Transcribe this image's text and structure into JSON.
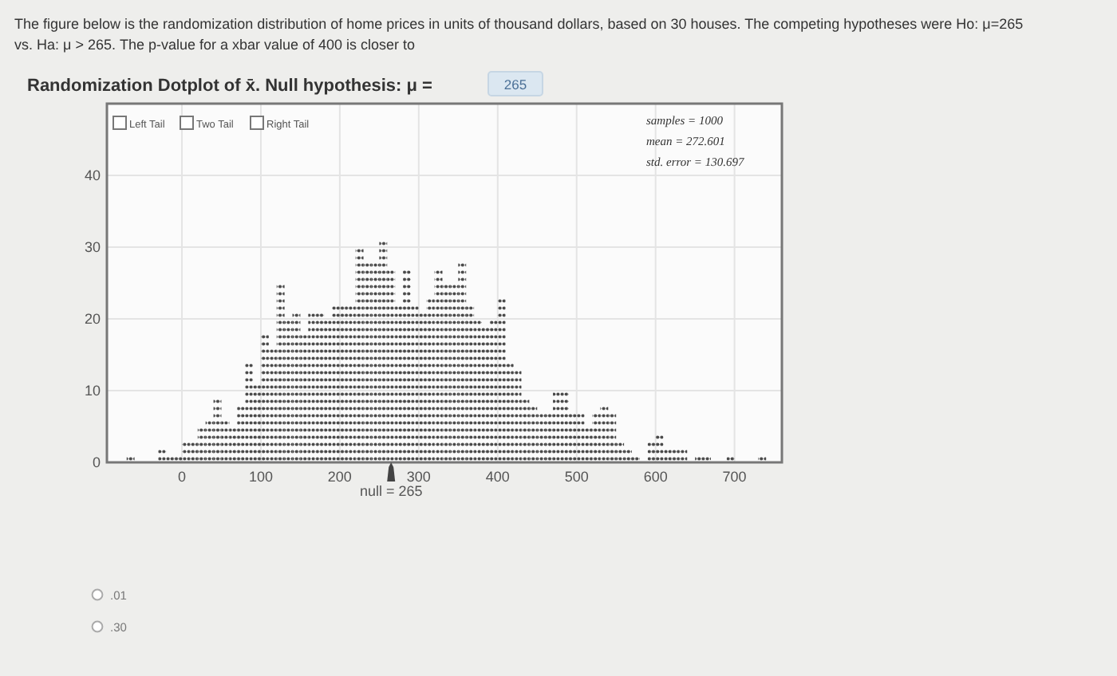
{
  "chart_data": {
    "type": "histogram",
    "subtitle": "The figure below is the randomization distribution of home prices in units of thousand dollars, based on 30 houses. The competing hypotheses were Ho: μ=265 vs. Ha: μ > 265. The p-value for a xbar value of 400 is closer to",
    "title": "Randomization Dotplot of x̄. Null hypothesis: μ =",
    "annotations": [
      "265",
      "Left Tail",
      "Two Tail",
      "Right Tail",
      "samples = 1000",
      "mean = 272.601",
      "std. error = 130.697",
      ".01",
      ".30",
      {
        "text": "null = 265",
        "x": 265,
        "y": 0
      }
    ],
    "bins": [
      -70,
      -60,
      -50,
      -40,
      -30,
      -20,
      -10,
      0,
      10,
      20,
      30,
      40,
      50,
      60,
      70,
      80,
      90,
      100,
      110,
      120,
      130,
      140,
      150,
      160,
      170,
      180,
      190,
      200,
      210,
      220,
      230,
      240,
      250,
      260,
      270,
      280,
      290,
      300,
      310,
      320,
      330,
      340,
      350,
      360,
      370,
      380,
      390,
      400,
      410,
      420,
      430,
      440,
      450,
      460,
      470,
      480,
      490,
      500,
      510,
      520,
      530,
      540,
      550,
      560,
      570,
      580,
      590,
      600,
      610,
      620,
      630,
      640,
      650,
      660,
      670,
      680,
      690,
      700,
      710,
      720,
      730,
      740
    ],
    "values": [
      1,
      0,
      0,
      0,
      2,
      1,
      1,
      3,
      3,
      5,
      6,
      9,
      6,
      5,
      8,
      14,
      11,
      18,
      16,
      25,
      20,
      21,
      18,
      21,
      21,
      20,
      22,
      22,
      22,
      30,
      28,
      28,
      31,
      27,
      22,
      27,
      22,
      21,
      23,
      27,
      25,
      25,
      28,
      22,
      20,
      19,
      20,
      23,
      14,
      13,
      9,
      8,
      7,
      7,
      10,
      10,
      7,
      7,
      5,
      7,
      8,
      7,
      3,
      2,
      1,
      0,
      3,
      4,
      2,
      2,
      2,
      0,
      1,
      1,
      0,
      0,
      1,
      0,
      0,
      0,
      1
    ],
    "color": "#4a4a4a",
    "xlim": [
      -95,
      760
    ],
    "xticks": [
      0,
      100,
      200,
      300,
      400,
      500,
      600,
      700
    ],
    "ylim": [
      0,
      50
    ],
    "yticks": [
      0,
      10,
      20,
      30,
      40
    ],
    "grid": true
  }
}
